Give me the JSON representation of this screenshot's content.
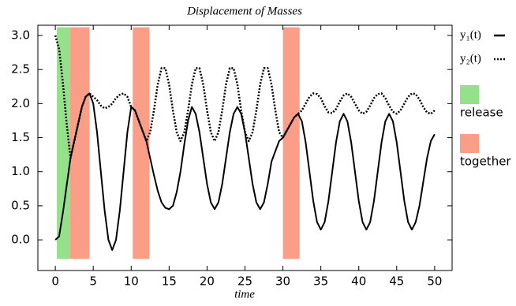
{
  "chart_data": {
    "type": "line",
    "title": "Displacement of Masses",
    "x_label": "time",
    "xlim": [
      -2.3,
      52.3
    ],
    "ylim": [
      -0.45,
      3.15
    ],
    "xticks": [
      0,
      5,
      10,
      15,
      20,
      25,
      30,
      35,
      40,
      45,
      50
    ],
    "yticks": [
      {
        "value": 0,
        "label": "0.0"
      },
      0.5,
      {
        "value": 1,
        "label": "1.0"
      },
      1.5,
      {
        "value": 2,
        "label": "2.0"
      },
      2.5,
      {
        "value": 3,
        "label": "3.0"
      }
    ],
    "x": [
      0,
      0.5,
      1,
      1.5,
      2,
      2.5,
      3,
      3.5,
      4,
      4.5,
      5,
      5.5,
      6,
      6.5,
      7,
      7.5,
      8,
      8.5,
      9,
      9.5,
      10,
      10.5,
      11,
      11.5,
      12,
      12.5,
      13,
      13.5,
      14,
      14.5,
      15,
      15.5,
      16,
      16.5,
      17,
      17.5,
      18,
      18.5,
      19,
      19.5,
      20,
      20.5,
      21,
      21.5,
      22,
      22.5,
      23,
      23.5,
      24,
      24.5,
      25,
      25.5,
      26,
      26.5,
      27,
      27.5,
      28,
      28.5,
      29,
      29.5,
      30,
      30.5,
      31,
      31.5,
      32,
      32.5,
      33,
      33.5,
      34,
      34.5,
      35,
      35.5,
      36,
      36.5,
      37,
      37.5,
      38,
      38.5,
      39,
      39.5,
      40,
      40.5,
      41,
      41.5,
      42,
      42.5,
      43,
      43.5,
      44,
      44.5,
      45,
      45.5,
      46,
      46.5,
      47,
      47.5,
      48,
      48.5,
      49,
      49.5,
      50
    ],
    "series": [
      {
        "name": "y₁(t)",
        "color": "#000000",
        "dash": "solid",
        "values": [
          0,
          0.05,
          0.4,
          0.8,
          1.2,
          1.45,
          1.7,
          1.95,
          2.1,
          2.15,
          2.0,
          1.58,
          1.0,
          0.43,
          0.0,
          -0.15,
          0.0,
          0.43,
          1.0,
          1.58,
          1.95,
          1.9,
          1.75,
          1.6,
          1.45,
          1.2,
          0.95,
          0.72,
          0.55,
          0.47,
          0.45,
          0.5,
          0.7,
          1.0,
          1.4,
          1.75,
          1.95,
          1.85,
          1.58,
          1.2,
          0.82,
          0.55,
          0.45,
          0.55,
          0.82,
          1.2,
          1.58,
          1.85,
          1.95,
          1.85,
          1.58,
          1.2,
          0.82,
          0.55,
          0.45,
          0.55,
          0.82,
          1.15,
          1.3,
          1.45,
          1.5,
          1.6,
          1.7,
          1.8,
          1.85,
          1.74,
          1.43,
          1.0,
          0.57,
          0.26,
          0.15,
          0.26,
          0.57,
          1.0,
          1.43,
          1.74,
          1.85,
          1.74,
          1.43,
          1.0,
          0.57,
          0.26,
          0.15,
          0.26,
          0.57,
          1.0,
          1.43,
          1.74,
          1.85,
          1.74,
          1.43,
          1.0,
          0.57,
          0.26,
          0.15,
          0.26,
          0.5,
          0.85,
          1.2,
          1.45,
          1.55
        ]
      },
      {
        "name": "y₂(t)",
        "color": "#000000",
        "dash": "dotted",
        "values": [
          3.0,
          2.8,
          2.3,
          1.7,
          1.2,
          1.45,
          1.7,
          1.95,
          2.1,
          2.15,
          2.1,
          2.05,
          1.97,
          1.93,
          1.95,
          2.0,
          2.08,
          2.13,
          2.15,
          2.1,
          1.95,
          1.9,
          1.75,
          1.6,
          1.45,
          1.58,
          1.9,
          2.28,
          2.52,
          2.52,
          2.28,
          1.9,
          1.58,
          1.45,
          1.58,
          1.9,
          2.28,
          2.52,
          2.52,
          2.28,
          1.9,
          1.58,
          1.45,
          1.58,
          1.9,
          2.28,
          2.52,
          2.52,
          2.28,
          1.9,
          1.58,
          1.45,
          1.58,
          1.9,
          2.28,
          2.52,
          2.52,
          2.28,
          1.9,
          1.58,
          1.5,
          1.6,
          1.7,
          1.8,
          1.85,
          1.9,
          2.0,
          2.1,
          2.15,
          2.14,
          2.08,
          1.96,
          1.87,
          1.86,
          1.92,
          2.03,
          2.12,
          2.15,
          2.1,
          2.0,
          1.9,
          1.85,
          1.88,
          1.97,
          2.08,
          2.14,
          2.15,
          2.08,
          1.97,
          1.88,
          1.85,
          1.9,
          2.0,
          2.1,
          2.15,
          2.14,
          2.06,
          1.95,
          1.87,
          1.85,
          1.9
        ]
      }
    ],
    "regions": [
      {
        "name": "release",
        "color": "#95e08a",
        "ylim": [
          -0.28,
          3.12
        ],
        "intervals": [
          [
            0.2,
            1.9
          ]
        ]
      },
      {
        "name": "together",
        "color": "#fa9e88",
        "ylim": [
          -0.28,
          3.12
        ],
        "intervals": [
          [
            1.9,
            4.5
          ],
          [
            10.2,
            12.4
          ],
          [
            30,
            32.2
          ]
        ]
      }
    ]
  }
}
